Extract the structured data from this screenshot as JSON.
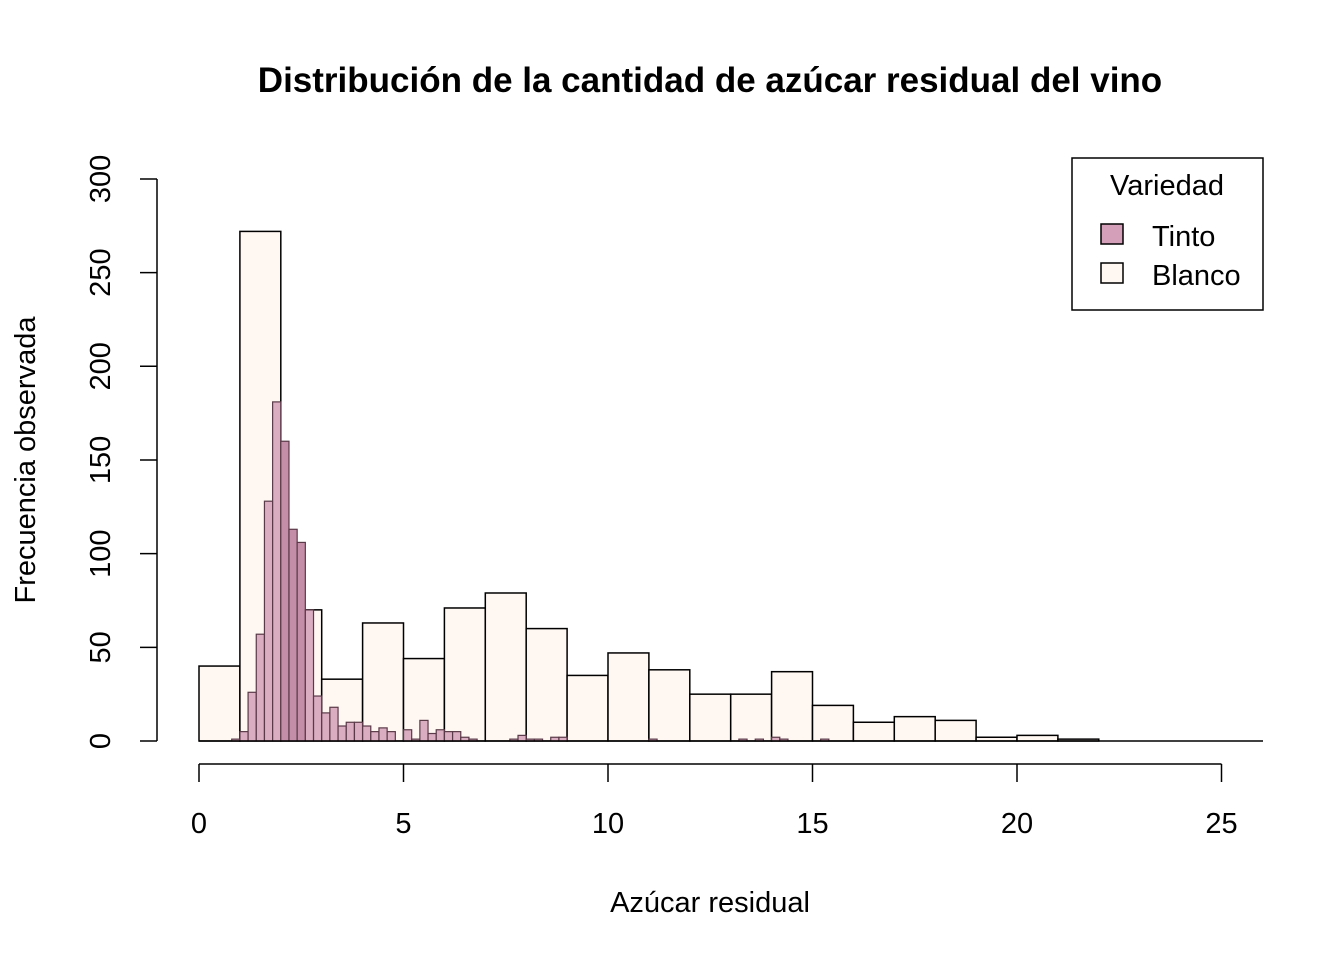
{
  "chart_data": {
    "type": "bar",
    "title": "Distribución de la cantidad de azúcar residual del vino",
    "xlabel": "Azúcar residual",
    "ylabel": "Frecuencia observada",
    "xlim": [
      0,
      26
    ],
    "ylim": [
      0,
      300
    ],
    "x_ticks": [
      "0",
      "5",
      "10",
      "15",
      "20",
      "25"
    ],
    "y_ticks": [
      "0",
      "50",
      "100",
      "150",
      "200",
      "250",
      "300"
    ],
    "legend": {
      "title": "Variedad",
      "position": "top-right",
      "entries": [
        {
          "label": "Tinto",
          "color": "#D4A0B9"
        },
        {
          "label": "Blanco",
          "color": "#FFF7F2"
        }
      ]
    },
    "series": [
      {
        "name": "Blanco",
        "color": "#FFF7F2",
        "bin_width": 1,
        "bins_start": [
          0,
          1,
          2,
          3,
          4,
          5,
          6,
          7,
          8,
          9,
          10,
          11,
          12,
          13,
          14,
          15,
          16,
          17,
          18,
          19,
          20,
          21,
          22,
          23,
          24,
          25
        ],
        "values": [
          40,
          272,
          70,
          33,
          63,
          44,
          71,
          79,
          60,
          35,
          47,
          38,
          25,
          25,
          37,
          19,
          10,
          13,
          11,
          2,
          3,
          1,
          0,
          0,
          0,
          0
        ]
      },
      {
        "name": "Tinto",
        "color": "#D4A0B9",
        "highlight_color": "#C48DA8",
        "highlight_range": [
          2.0,
          2.6
        ],
        "bin_width": 0.2,
        "bins_start": [
          0.8,
          1.0,
          1.2,
          1.4,
          1.6,
          1.8,
          2.0,
          2.2,
          2.4,
          2.6,
          2.8,
          3.0,
          3.2,
          3.4,
          3.6,
          3.8,
          4.0,
          4.2,
          4.4,
          4.6,
          4.8,
          5.0,
          5.2,
          5.4,
          5.6,
          5.8,
          6.0,
          6.2,
          6.4,
          6.6,
          6.8,
          7.0,
          7.2,
          7.4,
          7.6,
          7.8,
          8.0,
          8.2,
          8.4,
          8.6,
          8.8,
          9.0,
          9.2,
          9.4,
          9.6,
          9.8,
          10.0,
          10.2,
          10.4,
          10.6,
          10.8,
          11.0,
          11.2,
          11.4,
          11.6,
          11.8,
          12.0,
          12.2,
          12.4,
          12.6,
          12.8,
          13.0,
          13.2,
          13.4,
          13.6,
          13.8,
          14.0,
          14.2,
          14.4,
          14.6,
          14.8,
          15.0,
          15.2,
          15.4
        ],
        "values": [
          1,
          5,
          26,
          57,
          128,
          181,
          160,
          113,
          106,
          70,
          24,
          15,
          18,
          8,
          10,
          10,
          8,
          5,
          7,
          5,
          0,
          6,
          1,
          11,
          4,
          6,
          5,
          5,
          2,
          1,
          0,
          0,
          0,
          0,
          1,
          3,
          1,
          1,
          0,
          2,
          2,
          0,
          0,
          0,
          0,
          0,
          0,
          0,
          0,
          0,
          0,
          1,
          0,
          0,
          0,
          0,
          0,
          0,
          0,
          0,
          0,
          0,
          1,
          0,
          1,
          0,
          2,
          1,
          0,
          0,
          0,
          0,
          1,
          0
        ]
      }
    ]
  }
}
